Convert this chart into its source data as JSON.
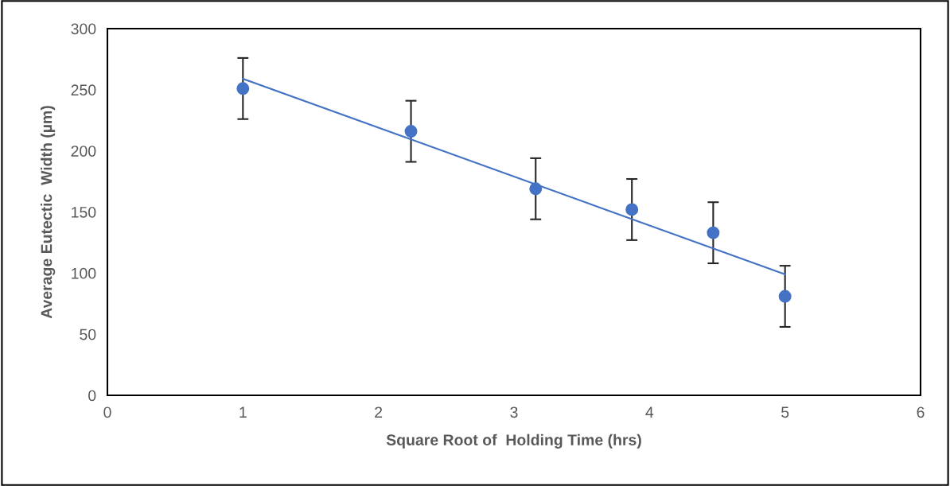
{
  "chart_data": {
    "type": "scatter",
    "xlabel": "Square Root of  Holding Time (hrs)",
    "ylabel": "Average Eutectic  Width (µm)",
    "x": [
      1,
      2.24,
      3.16,
      3.87,
      4.47,
      5
    ],
    "series": [
      {
        "color": "#4472c4",
        "marker": "circle",
        "values": [
          251,
          216,
          169,
          152,
          133,
          81
        ],
        "errors": [
          25,
          25,
          25,
          25,
          25,
          25
        ]
      },
      {
        "type": "line",
        "color": "#4472c4",
        "marker": "none",
        "x": [
          1,
          5
        ],
        "values": [
          259,
          99
        ]
      }
    ],
    "xlim": [
      0,
      6
    ],
    "ylim": [
      0,
      300
    ],
    "xticks": [
      0,
      1,
      2,
      3,
      4,
      5,
      6
    ],
    "yticks": [
      0,
      50,
      100,
      150,
      200,
      250,
      300
    ],
    "grid": false,
    "legend": false
  }
}
